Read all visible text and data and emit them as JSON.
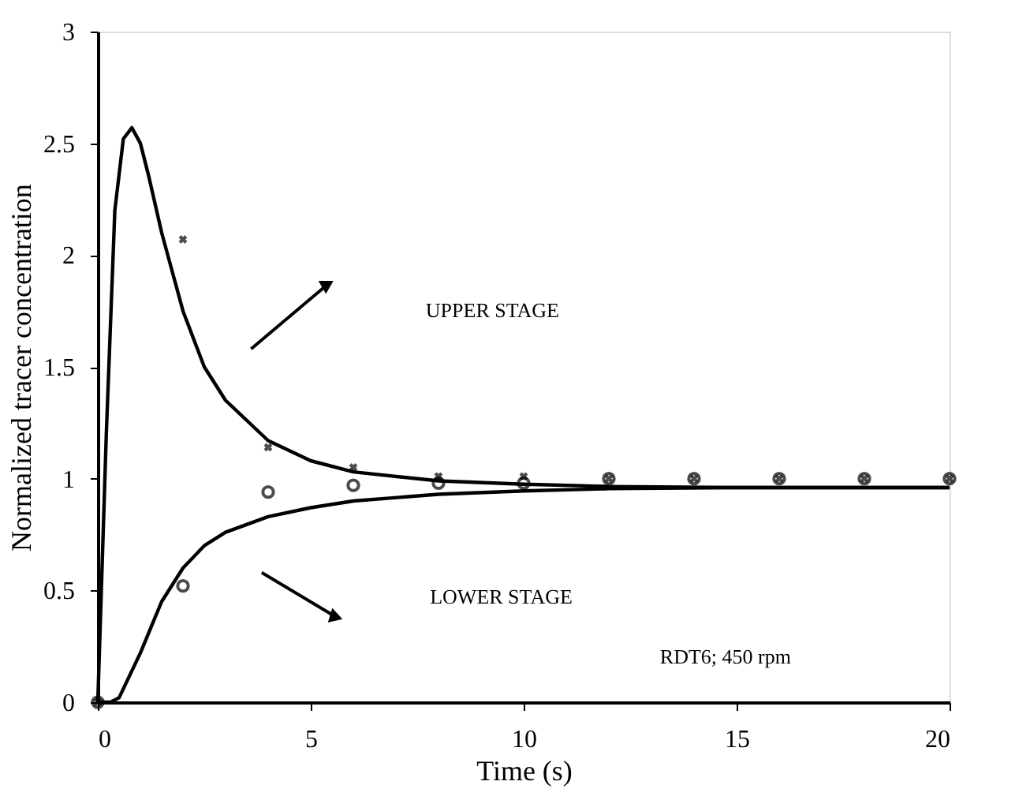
{
  "chart_data": {
    "type": "line",
    "xlabel": "Time (s)",
    "ylabel": "Normalized tracer concentration",
    "xlim": [
      0,
      20
    ],
    "ylim": [
      0,
      3
    ],
    "xticks": [
      0,
      5,
      10,
      15,
      20
    ],
    "yticks": [
      0,
      0.5,
      1,
      1.5,
      2,
      2.5,
      3
    ],
    "series": [
      {
        "color": "#000000",
        "marker": "none",
        "x": [
          0,
          0.2,
          0.4,
          0.6,
          0.8,
          1,
          1.2,
          1.5,
          2,
          2.5,
          3,
          4,
          5,
          6,
          8,
          10,
          12,
          15,
          20
        ],
        "values": [
          0,
          1.2,
          2.2,
          2.52,
          2.57,
          2.5,
          2.35,
          2.1,
          1.75,
          1.5,
          1.35,
          1.17,
          1.08,
          1.03,
          0.99,
          0.975,
          0.965,
          0.96,
          0.96
        ]
      },
      {
        "color": "#000000",
        "marker": "none",
        "x": [
          0,
          0.3,
          0.5,
          1,
          1.5,
          2,
          2.5,
          3,
          4,
          5,
          6,
          8,
          10,
          12,
          15,
          20
        ],
        "values": [
          0,
          0,
          0.02,
          0.22,
          0.45,
          0.6,
          0.7,
          0.76,
          0.83,
          0.87,
          0.9,
          0.93,
          0.945,
          0.955,
          0.96,
          0.96
        ]
      },
      {
        "type": "scatter",
        "color": "#000000",
        "marker": "cross",
        "x": [
          0,
          2,
          4,
          6,
          8,
          10,
          12,
          14,
          16,
          18,
          20
        ],
        "values": [
          0,
          2.07,
          1.14,
          1.05,
          1.01,
          1.01,
          1.0,
          1.0,
          1.0,
          1.0,
          1.0
        ]
      },
      {
        "type": "scatter",
        "color": "#000000",
        "marker": "circle",
        "x": [
          0,
          2,
          4,
          6,
          8,
          10,
          12,
          14,
          16,
          18,
          20
        ],
        "values": [
          0,
          0.52,
          0.94,
          0.97,
          0.98,
          0.98,
          1.0,
          1.0,
          1.0,
          1.0,
          1.0
        ]
      }
    ],
    "annotations": [
      "UPPER STAGE",
      "LOWER STAGE",
      "RDT6; 450 rpm"
    ]
  }
}
